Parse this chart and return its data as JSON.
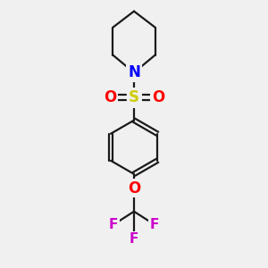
{
  "bg_color": "#f0f0f0",
  "bond_color": "#1a1a1a",
  "N_color": "#0000ff",
  "O_color": "#ff0000",
  "S_color": "#cccc00",
  "F_color": "#cc00cc",
  "line_width": 1.6,
  "figsize": [
    3.0,
    3.0
  ],
  "dpi": 100,
  "xlim": [
    2.5,
    7.5
  ],
  "ylim": [
    0.5,
    9.5
  ]
}
